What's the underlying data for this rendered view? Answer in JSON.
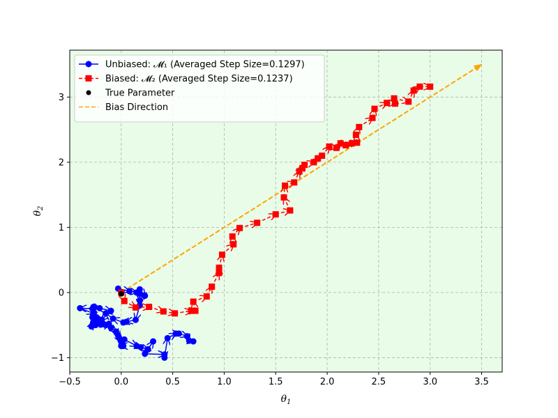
{
  "chart_data": {
    "type": "line",
    "title": "",
    "xlabel": "θ1",
    "ylabel": "θ2",
    "xlim": [
      -0.5,
      3.7
    ],
    "ylim": [
      -1.22,
      3.72
    ],
    "grid": true,
    "background": "#e8fce8",
    "legend_position": "top-left",
    "x_ticks": [
      -0.5,
      0.0,
      0.5,
      1.0,
      1.5,
      2.0,
      2.5,
      3.0,
      3.5
    ],
    "y_ticks": [
      -1,
      0,
      1,
      2,
      3
    ],
    "x_tick_labels": [
      "−0.5",
      "0.0",
      "0.5",
      "1.0",
      "1.5",
      "2.0",
      "2.5",
      "3.0",
      "3.5"
    ],
    "y_tick_labels": [
      "−1",
      "0",
      "1",
      "2",
      "3"
    ],
    "legend": [
      "Unbiased: 𝓜₁ (Averaged Step Size=0.1297)",
      "Biased: 𝓜₂ (Averaged Step Size=0.1237)",
      "True Parameter",
      "Bias Direction"
    ],
    "series": [
      {
        "name": "Unbiased: 𝓜₁ (Averaged Step Size=0.1297)",
        "style": "line-circle",
        "color": "#0000ff",
        "x": [
          0.0,
          -0.03,
          0.08,
          0.15,
          0.18,
          0.23,
          0.18,
          0.18,
          0.18,
          0.14,
          0.05,
          0.02,
          -0.08,
          -0.15,
          -0.27,
          -0.21,
          -0.1,
          -0.19,
          -0.24,
          -0.27,
          -0.23,
          -0.29,
          -0.27,
          -0.28,
          -0.18,
          -0.25,
          -0.28,
          -0.4,
          -0.27,
          -0.24,
          -0.22,
          -0.19,
          -0.15,
          -0.12,
          -0.1,
          -0.05,
          -0.03,
          -0.02,
          0.0,
          0.02,
          0.0,
          0.03,
          0.15,
          0.19,
          0.26,
          0.31,
          0.23,
          0.42,
          0.42,
          0.45,
          0.53,
          0.56,
          0.64,
          0.66,
          0.7
        ],
        "y": [
          0.0,
          0.06,
          0.02,
          0.0,
          0.05,
          -0.05,
          -0.02,
          -0.12,
          -0.2,
          -0.42,
          -0.45,
          -0.46,
          -0.4,
          -0.32,
          -0.22,
          -0.24,
          -0.28,
          -0.42,
          -0.4,
          -0.45,
          -0.46,
          -0.52,
          -0.47,
          -0.38,
          -0.47,
          -0.5,
          -0.25,
          -0.24,
          -0.32,
          -0.38,
          -0.47,
          -0.49,
          -0.5,
          -0.48,
          -0.54,
          -0.6,
          -0.66,
          -0.7,
          -0.74,
          -0.82,
          -0.82,
          -0.72,
          -0.82,
          -0.84,
          -0.87,
          -0.75,
          -0.94,
          -0.95,
          -1.0,
          -0.7,
          -0.63,
          -0.63,
          -0.67,
          -0.74,
          -0.75
        ]
      },
      {
        "name": "Biased: 𝓜₂ (Averaged Step Size=0.1237)",
        "style": "dashed-square",
        "color": "#ff0000",
        "x": [
          0.0,
          0.03,
          0.14,
          0.27,
          0.41,
          0.52,
          0.68,
          0.72,
          0.7,
          0.83,
          0.88,
          0.95,
          0.95,
          0.98,
          1.09,
          1.08,
          1.15,
          1.32,
          1.5,
          1.64,
          1.58,
          1.59,
          1.68,
          1.73,
          1.76,
          1.78,
          1.87,
          1.91,
          1.95,
          2.02,
          2.09,
          2.13,
          2.18,
          2.24,
          2.29,
          2.28,
          2.31,
          2.44,
          2.46,
          2.58,
          2.66,
          2.65,
          2.79,
          2.84,
          2.9,
          3.0
        ],
        "y": [
          0.0,
          -0.13,
          -0.23,
          -0.22,
          -0.29,
          -0.32,
          -0.28,
          -0.28,
          -0.14,
          -0.06,
          0.09,
          0.3,
          0.38,
          0.58,
          0.74,
          0.86,
          0.99,
          1.07,
          1.2,
          1.26,
          1.46,
          1.64,
          1.69,
          1.86,
          1.91,
          1.96,
          2.0,
          2.06,
          2.1,
          2.24,
          2.22,
          2.29,
          2.26,
          2.29,
          2.3,
          2.42,
          2.54,
          2.68,
          2.82,
          2.91,
          2.9,
          2.98,
          2.93,
          3.1,
          3.16,
          3.16
        ]
      },
      {
        "name": "True Parameter",
        "style": "point",
        "color": "#000000",
        "x": [
          0.0
        ],
        "y": [
          -0.02
        ]
      },
      {
        "name": "Bias Direction",
        "style": "dashed-arrow",
        "color": "#ffa500",
        "x": [
          0.0,
          3.5
        ],
        "y": [
          0.0,
          3.5
        ]
      }
    ]
  }
}
